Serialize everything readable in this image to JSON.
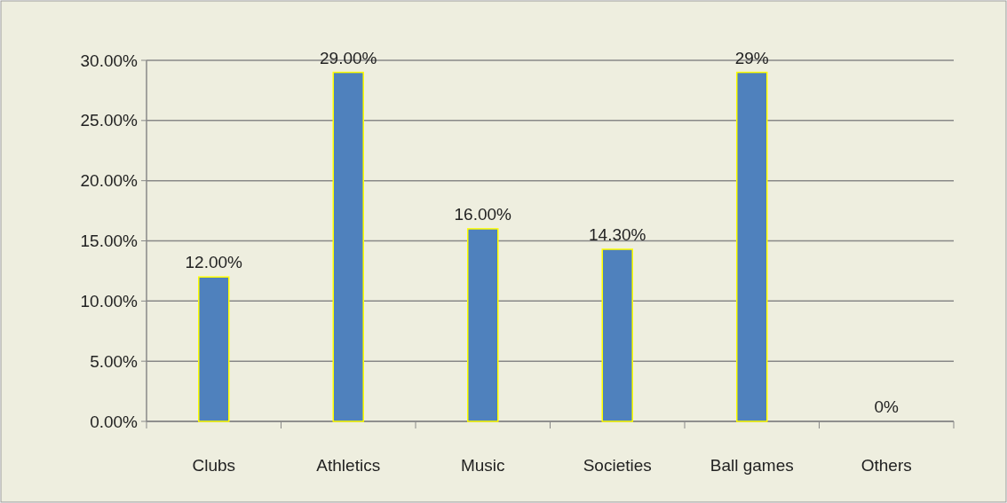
{
  "chart_data": {
    "type": "bar",
    "categories": [
      "Clubs",
      "Athletics",
      "Music",
      "Societies",
      "Ball games",
      "Others"
    ],
    "values": [
      12,
      29,
      16,
      14.3,
      29,
      0
    ],
    "value_labels": [
      "12.00%",
      "29.00%",
      "16.00%",
      "14.30%",
      "29%",
      "0%"
    ],
    "color": "#4f81bd",
    "ylim": [
      0,
      30
    ],
    "yticks": [
      {
        "value": 0,
        "label": "0.00%"
      },
      {
        "value": 5,
        "label": "5.00%"
      },
      {
        "value": 10,
        "label": "10.00%"
      },
      {
        "value": 15,
        "label": "15.00%"
      },
      {
        "value": 20,
        "label": "20.00%"
      },
      {
        "value": 25,
        "label": "25.00%"
      },
      {
        "value": 30,
        "label": "30.00%"
      }
    ],
    "grid": "y"
  }
}
